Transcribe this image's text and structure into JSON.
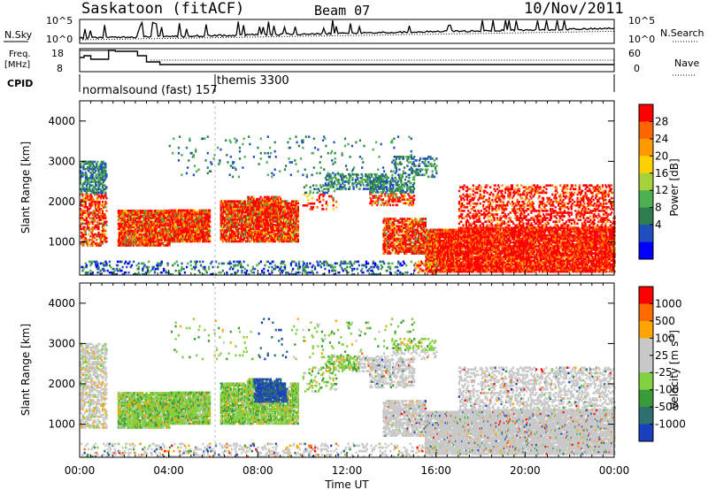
{
  "header": {
    "station": "Saskatoon (fitACF)",
    "beam": "Beam 07",
    "date": "10/Nov/2011"
  },
  "sky_panel": {
    "left_label": "N.Sky",
    "left_ticks": [
      "10^5",
      "10^0"
    ],
    "right_ticks": [
      "10^5",
      "10^0"
    ],
    "right_label": "N.Search"
  },
  "freq_panel": {
    "left_label_1": "Freq.",
    "left_label_2": "[MHz]",
    "left_ticks": [
      "18",
      "8"
    ],
    "right_ticks": [
      "60",
      "0"
    ],
    "right_label": "Nave"
  },
  "cpid": {
    "label": "CPID",
    "programs": [
      {
        "name": "normalsound (fast)",
        "id": "157"
      },
      {
        "name": "themis",
        "id": "3300"
      }
    ]
  },
  "chart_data": [
    {
      "type": "heatmap",
      "name": "power",
      "ylabel": "Slant Range [km]",
      "ylim": [
        180,
        4500
      ],
      "yticks": [
        1000,
        2000,
        3000,
        4000
      ],
      "xlim": [
        0,
        24
      ],
      "colorbar_label": "Power [dB]",
      "colorbar_ticks": [
        "28",
        "24",
        "20",
        "16",
        "12",
        "8",
        "4"
      ],
      "colors": [
        "#0000ff",
        "#1f4fbf",
        "#2e7d4f",
        "#4caf50",
        "#a6d13a",
        "#ffd000",
        "#ff9900",
        "#ff6600",
        "#ff0000"
      ]
    },
    {
      "type": "heatmap",
      "name": "velocity",
      "ylabel": "Slant Range [km]",
      "ylim": [
        180,
        4500
      ],
      "yticks": [
        1000,
        2000,
        3000,
        4000
      ],
      "xlim": [
        0,
        24
      ],
      "xlabel": "Time UT",
      "xticks": [
        "00:00",
        "04:00",
        "08:00",
        "12:00",
        "16:00",
        "20:00",
        "00:00"
      ],
      "colorbar_label": "Velocity [m s",
      "colorbar_sup": "-1",
      "colorbar_suffix": "]",
      "colorbar_ticks": [
        "1000",
        "500",
        "100",
        "25",
        "-25",
        "-100",
        "-500",
        "-1000"
      ],
      "colors": [
        "#1a3fbf",
        "#2e6f6f",
        "#3a9a3a",
        "#80d040",
        "#c8c8c8",
        "#c8c8c8",
        "#ffa500",
        "#ff6a00",
        "#ff0000"
      ]
    }
  ]
}
